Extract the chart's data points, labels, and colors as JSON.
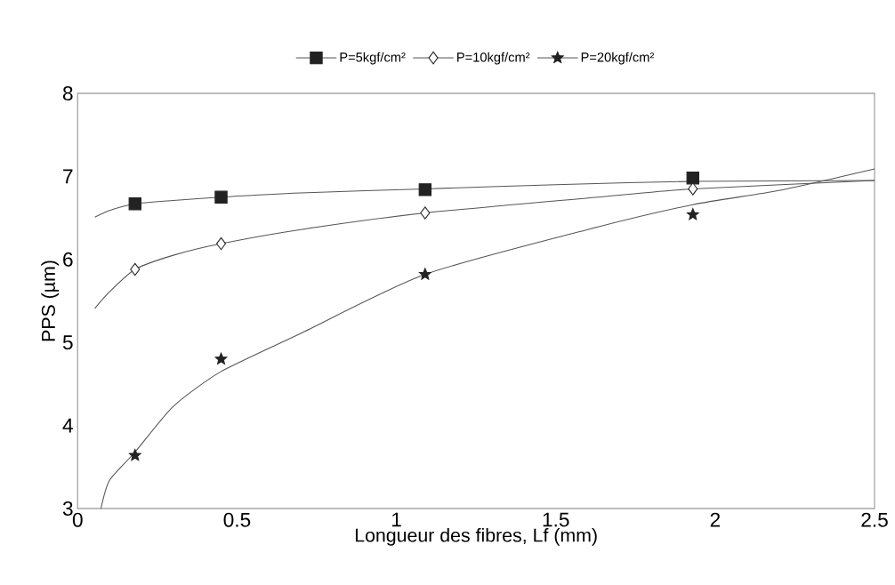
{
  "chart_data": {
    "type": "scatter",
    "xlabel": "Longueur des fibres, Lf (mm)",
    "ylabel": "PPS (µm)",
    "xlim": [
      0,
      2.5
    ],
    "ylim": [
      3,
      8
    ],
    "xticks": [
      0,
      0.5,
      1,
      1.5,
      2,
      2.5
    ],
    "yticks": [
      3,
      4,
      5,
      6,
      7,
      8
    ],
    "grid": false,
    "legend": "top",
    "series": [
      {
        "name": "P=5kgf/cm²",
        "marker": "square",
        "color": "#222222",
        "x": [
          0.18,
          0.45,
          1.09,
          1.93
        ],
        "values": [
          6.67,
          6.75,
          6.84,
          6.98
        ]
      },
      {
        "name": "P=10kgf/cm²",
        "marker": "diamond",
        "color": "#222222",
        "x": [
          0.18,
          0.45,
          1.09,
          1.93
        ],
        "values": [
          5.88,
          6.19,
          6.56,
          6.85
        ]
      },
      {
        "name": "P=20kgf/cm²",
        "marker": "star",
        "color": "#222222",
        "x": [
          0.18,
          0.45,
          1.09,
          1.93
        ],
        "values": [
          3.64,
          4.8,
          5.82,
          6.54
        ]
      },
      {
        "type": "line",
        "marker": "none",
        "color": "#555555",
        "x": [
          0.054,
          0.1,
          0.18,
          0.3,
          0.45,
          0.7,
          1.09,
          1.5,
          1.93,
          2.5
        ],
        "values": [
          6.51,
          6.59,
          6.67,
          6.71,
          6.75,
          6.8,
          6.85,
          6.9,
          6.94,
          6.95
        ]
      },
      {
        "type": "line",
        "marker": "none",
        "color": "#555555",
        "x": [
          0.054,
          0.1,
          0.18,
          0.3,
          0.45,
          0.7,
          1.09,
          1.6,
          1.93,
          2.5
        ],
        "values": [
          5.41,
          5.61,
          5.88,
          6.05,
          6.19,
          6.36,
          6.56,
          6.74,
          6.85,
          6.95
        ]
      },
      {
        "type": "line",
        "marker": "none",
        "color": "#555555",
        "x": [
          0.073,
          0.1,
          0.18,
          0.3,
          0.45,
          0.7,
          1.09,
          1.6,
          1.93,
          2.2,
          2.5
        ],
        "values": [
          3.0,
          3.34,
          3.68,
          4.23,
          4.65,
          5.11,
          5.82,
          6.36,
          6.66,
          6.83,
          7.09
        ]
      }
    ]
  }
}
